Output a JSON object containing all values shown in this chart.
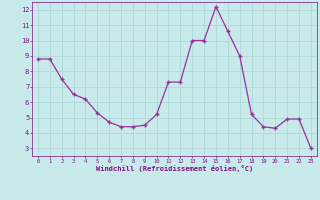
{
  "x": [
    0,
    1,
    2,
    3,
    4,
    5,
    6,
    7,
    8,
    9,
    10,
    11,
    12,
    13,
    14,
    15,
    16,
    17,
    18,
    19,
    20,
    21,
    22,
    23
  ],
  "y": [
    8.8,
    8.8,
    7.5,
    6.5,
    6.2,
    5.3,
    4.7,
    4.4,
    4.4,
    4.5,
    5.2,
    7.3,
    7.3,
    10.0,
    10.0,
    12.2,
    10.6,
    9.0,
    5.2,
    4.4,
    4.3,
    4.9,
    4.9,
    3.0
  ],
  "line_color": "#9B30A0",
  "marker": "+",
  "marker_color": "#9B30A0",
  "bg_color": "#c8eaea",
  "grid_color": "#b0d8d8",
  "xlabel": "Windchill (Refroidissement éolien,°C)",
  "ylabel_ticks": [
    3,
    4,
    5,
    6,
    7,
    8,
    9,
    10,
    11,
    12
  ],
  "xlim": [
    -0.5,
    23.5
  ],
  "ylim": [
    2.5,
    12.5
  ],
  "tick_color": "#7B1080",
  "xlabel_color": "#7B1080"
}
